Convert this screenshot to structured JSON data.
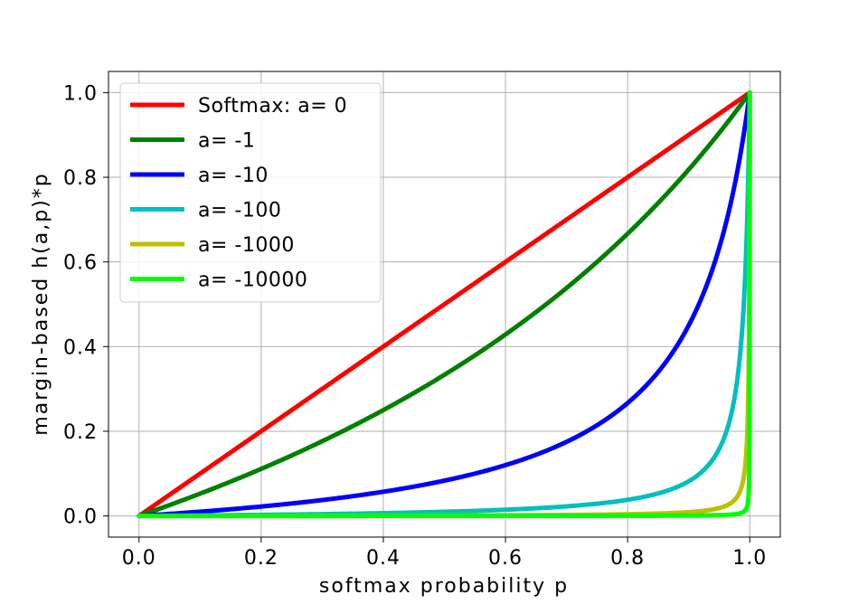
{
  "chart_data": {
    "type": "line",
    "xlabel": "softmax probability p",
    "ylabel": "margin-based h(a,p)*p",
    "xlim": [
      -0.05,
      1.05
    ],
    "ylim": [
      -0.05,
      1.05
    ],
    "xticks": [
      "0.0",
      "0.2",
      "0.4",
      "0.6",
      "0.8",
      "1.0"
    ],
    "yticks": [
      "0.0",
      "0.2",
      "0.4",
      "0.6",
      "0.8",
      "1.0"
    ],
    "grid": true,
    "legend_position": "top-left",
    "series": [
      {
        "name": "Softmax: a= 0",
        "color": "#ff0000",
        "a": 0,
        "x": [
          0,
          0.2,
          0.4,
          0.6,
          0.8,
          1.0
        ],
        "y": [
          0,
          0.2,
          0.4,
          0.6,
          0.8,
          1.0
        ]
      },
      {
        "name": "a= -1",
        "color": "#008000",
        "a": -1,
        "x": [
          0,
          0.2,
          0.4,
          0.6,
          0.8,
          1.0
        ],
        "y": [
          0,
          0.11,
          0.25,
          0.43,
          0.67,
          1.0
        ]
      },
      {
        "name": "a= -10",
        "color": "#0000ff",
        "a": -10,
        "x": [
          0,
          0.2,
          0.4,
          0.6,
          0.8,
          0.9,
          1.0
        ],
        "y": [
          0,
          0.02,
          0.06,
          0.13,
          0.29,
          0.47,
          1.0
        ]
      },
      {
        "name": "a= -100",
        "color": "#00bfbf",
        "a": -100,
        "x": [
          0,
          0.4,
          0.8,
          0.9,
          0.95,
          0.99,
          1.0
        ],
        "y": [
          0,
          0.007,
          0.04,
          0.08,
          0.16,
          0.5,
          1.0
        ]
      },
      {
        "name": "a= -1000",
        "color": "#bfbf00",
        "a": -1000,
        "x": [
          0,
          0.8,
          0.95,
          0.99,
          0.999,
          1.0
        ],
        "y": [
          0,
          0.004,
          0.02,
          0.09,
          0.5,
          1.0
        ]
      },
      {
        "name": "a= -10000",
        "color": "#00ff00",
        "a": -10000,
        "x": [
          0,
          0.8,
          0.99,
          0.999,
          0.9999,
          1.0
        ],
        "y": [
          0,
          0.0004,
          0.01,
          0.09,
          0.5,
          1.0
        ]
      }
    ]
  }
}
